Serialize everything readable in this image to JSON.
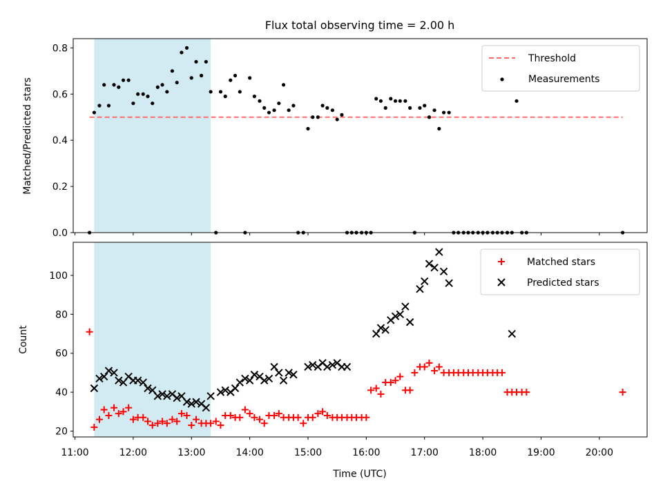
{
  "figure": {
    "title": "Flux total observing time = 2.00 h",
    "xlabel": "Time (UTC)"
  },
  "colors": {
    "threshold": "#ff6b6b",
    "measurement": "#000000",
    "matched": "#ff0000",
    "predicted": "#000000",
    "shade": "#add8e6"
  },
  "chart_data": [
    {
      "type": "scatter",
      "ylabel": "Matched/Predicted stars",
      "xlim": [
        10.97,
        20.82
      ],
      "ylim": [
        0,
        0.84
      ],
      "yticks": [
        0.0,
        0.2,
        0.4,
        0.6,
        0.8
      ],
      "ytick_labels": [
        "0.0",
        "0.2",
        "0.4",
        "0.6",
        "0.8"
      ],
      "shaded_span": [
        11.33,
        13.33
      ],
      "legend": {
        "placement": "top-right",
        "entries": [
          "Threshold",
          "Measurements"
        ]
      },
      "threshold": {
        "name": "Threshold",
        "y": 0.5,
        "x": [
          11.25,
          20.4
        ]
      },
      "series": [
        {
          "name": "Measurements",
          "marker": "dot",
          "x": [
            11.25,
            11.33,
            11.42,
            11.5,
            11.58,
            11.67,
            11.75,
            11.83,
            11.92,
            12.0,
            12.08,
            12.17,
            12.25,
            12.33,
            12.42,
            12.5,
            12.58,
            12.67,
            12.75,
            12.83,
            12.92,
            13.0,
            13.08,
            13.17,
            13.25,
            13.33,
            13.42,
            13.5,
            13.58,
            13.67,
            13.75,
            13.83,
            13.92,
            14.0,
            14.08,
            14.17,
            14.25,
            14.33,
            14.42,
            14.5,
            14.58,
            14.67,
            14.75,
            14.83,
            14.92,
            15.0,
            15.08,
            15.17,
            15.25,
            15.33,
            15.42,
            15.5,
            15.58,
            15.67,
            15.75,
            15.83,
            15.92,
            16.0,
            16.08,
            16.17,
            16.25,
            16.33,
            16.42,
            16.5,
            16.58,
            16.67,
            16.75,
            16.83,
            16.92,
            17.0,
            17.08,
            17.17,
            17.25,
            17.33,
            17.42,
            17.5,
            17.58,
            17.67,
            17.75,
            17.83,
            17.92,
            18.0,
            18.08,
            18.17,
            18.25,
            18.33,
            18.42,
            18.5,
            18.58,
            18.67,
            18.75,
            20.4
          ],
          "y": [
            0.0,
            0.52,
            0.55,
            0.64,
            0.55,
            0.64,
            0.63,
            0.66,
            0.66,
            0.56,
            0.6,
            0.6,
            0.59,
            0.56,
            0.63,
            0.64,
            0.61,
            0.7,
            0.65,
            0.78,
            0.8,
            0.67,
            0.74,
            0.68,
            0.74,
            0.61,
            0.0,
            0.61,
            0.59,
            0.66,
            0.68,
            0.61,
            0.0,
            0.67,
            0.59,
            0.57,
            0.54,
            0.52,
            0.53,
            0.56,
            0.64,
            0.53,
            0.55,
            0.0,
            0.0,
            0.45,
            0.5,
            0.5,
            0.55,
            0.54,
            0.53,
            0.49,
            0.51,
            0.0,
            0.0,
            0.0,
            0.0,
            0.0,
            0.0,
            0.58,
            0.57,
            0.54,
            0.58,
            0.57,
            0.57,
            0.57,
            0.54,
            0.0,
            0.54,
            0.55,
            0.5,
            0.53,
            0.45,
            0.52,
            0.52,
            0.0,
            0.0,
            0.0,
            0.0,
            0.0,
            0.0,
            0.0,
            0.0,
            0.0,
            0.0,
            0.0,
            0.0,
            0.0,
            0.57,
            0.0,
            0.0,
            0.0
          ]
        }
      ]
    },
    {
      "type": "scatter",
      "ylabel": "Count",
      "xlim": [
        10.97,
        20.82
      ],
      "ylim": [
        17,
        117
      ],
      "yticks": [
        20,
        40,
        60,
        80,
        100
      ],
      "ytick_labels": [
        "20",
        "40",
        "60",
        "80",
        "100"
      ],
      "xticks": [
        11,
        12,
        13,
        14,
        15,
        16,
        17,
        18,
        19,
        20
      ],
      "xtick_labels": [
        "11:00",
        "12:00",
        "13:00",
        "14:00",
        "15:00",
        "16:00",
        "17:00",
        "18:00",
        "19:00",
        "20:00"
      ],
      "shaded_span": [
        11.33,
        13.33
      ],
      "legend": {
        "placement": "top-right",
        "entries": [
          "Matched stars",
          "Predicted stars"
        ]
      },
      "series": [
        {
          "name": "Matched stars",
          "marker": "plus",
          "x": [
            11.25,
            11.33,
            11.42,
            11.5,
            11.58,
            11.67,
            11.75,
            11.83,
            11.92,
            12.0,
            12.08,
            12.17,
            12.25,
            12.33,
            12.42,
            12.5,
            12.58,
            12.67,
            12.75,
            12.83,
            12.92,
            13.0,
            13.08,
            13.17,
            13.25,
            13.33,
            13.42,
            13.5,
            13.58,
            13.67,
            13.75,
            13.83,
            13.92,
            14.0,
            14.08,
            14.17,
            14.25,
            14.33,
            14.42,
            14.5,
            14.58,
            14.67,
            14.75,
            14.83,
            14.92,
            15.0,
            15.08,
            15.17,
            15.25,
            15.33,
            15.42,
            15.5,
            15.58,
            15.67,
            15.75,
            15.83,
            15.92,
            16.0,
            16.08,
            16.17,
            16.25,
            16.33,
            16.42,
            16.5,
            16.58,
            16.67,
            16.75,
            16.83,
            16.92,
            17.0,
            17.08,
            17.17,
            17.25,
            17.33,
            17.42,
            17.5,
            17.58,
            17.67,
            17.75,
            17.83,
            17.92,
            18.0,
            18.08,
            18.17,
            18.25,
            18.33,
            18.42,
            18.5,
            18.58,
            18.67,
            18.75,
            20.4
          ],
          "y": [
            71,
            22,
            26,
            31,
            28,
            32,
            29,
            30,
            32,
            26,
            27,
            27,
            25,
            23,
            24,
            25,
            24,
            26,
            25,
            29,
            28,
            23,
            26,
            24,
            24,
            24,
            25,
            23,
            28,
            28,
            27,
            27,
            31,
            29,
            27,
            26,
            24,
            28,
            28,
            29,
            27,
            27,
            27,
            27,
            24,
            27,
            27,
            29,
            30,
            28,
            27,
            27,
            27,
            27,
            27,
            27,
            27,
            27,
            41,
            42,
            39,
            45,
            45,
            46,
            48,
            41,
            41,
            50,
            53,
            53,
            55,
            51,
            53,
            50,
            50,
            50,
            50,
            50,
            50,
            50,
            50,
            50,
            50,
            50,
            50,
            50,
            40,
            40,
            40,
            40,
            40,
            40
          ]
        },
        {
          "name": "Predicted stars",
          "marker": "x",
          "x": [
            11.33,
            11.42,
            11.5,
            11.58,
            11.67,
            11.75,
            11.83,
            11.92,
            12.0,
            12.08,
            12.17,
            12.25,
            12.33,
            12.42,
            12.5,
            12.58,
            12.67,
            12.75,
            12.83,
            12.92,
            13.0,
            13.08,
            13.17,
            13.25,
            13.33,
            13.5,
            13.58,
            13.67,
            13.75,
            13.83,
            13.92,
            14.0,
            14.08,
            14.17,
            14.25,
            14.33,
            14.42,
            14.5,
            14.58,
            14.67,
            14.75,
            15.0,
            15.08,
            15.17,
            15.25,
            15.33,
            15.42,
            15.5,
            15.58,
            15.67,
            16.17,
            16.25,
            16.33,
            16.42,
            16.5,
            16.58,
            16.67,
            16.75,
            16.92,
            17.0,
            17.08,
            17.17,
            17.25,
            17.33,
            17.42,
            18.5
          ],
          "y": [
            42,
            47,
            48,
            51,
            50,
            46,
            45,
            48,
            46,
            46,
            45,
            42,
            41,
            38,
            39,
            38,
            39,
            37,
            38,
            35,
            34,
            35,
            34,
            32,
            38,
            40,
            41,
            40,
            42,
            45,
            47,
            46,
            49,
            48,
            46,
            47,
            53,
            50,
            46,
            50,
            49,
            53,
            54,
            53,
            55,
            53,
            54,
            55,
            53,
            53,
            70,
            73,
            72,
            77,
            79,
            80,
            84,
            76,
            93,
            97,
            106,
            104,
            112,
            102,
            96,
            70
          ]
        }
      ]
    }
  ]
}
